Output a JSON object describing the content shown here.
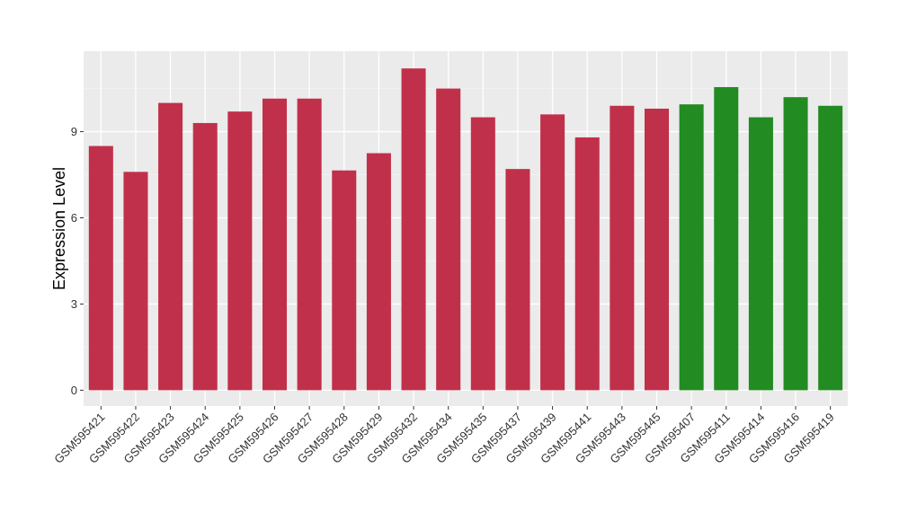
{
  "chart_data": {
    "type": "bar",
    "title": "",
    "xlabel": "",
    "ylabel": "Expression Level",
    "ylim": [
      -0.55,
      11.8
    ],
    "yticks": [
      0,
      3,
      6,
      9
    ],
    "grid": true,
    "panel_background": "#ebebeb",
    "categories": [
      "GSM595421",
      "GSM595422",
      "GSM595423",
      "GSM595424",
      "GSM595425",
      "GSM595426",
      "GSM595427",
      "GSM595428",
      "GSM595429",
      "GSM595432",
      "GSM595434",
      "GSM595435",
      "GSM595437",
      "GSM595439",
      "GSM595441",
      "GSM595443",
      "GSM595445",
      "GSM595407",
      "GSM595411",
      "GSM595414",
      "GSM595416",
      "GSM595419"
    ],
    "values": [
      8.5,
      7.6,
      10.0,
      9.3,
      9.7,
      10.15,
      10.15,
      7.65,
      8.25,
      11.2,
      10.5,
      9.5,
      7.7,
      9.6,
      8.8,
      9.9,
      9.8,
      9.95,
      10.55,
      9.5,
      10.2,
      9.9
    ],
    "bar_colors": [
      "#c1304a",
      "#c1304a",
      "#c1304a",
      "#c1304a",
      "#c1304a",
      "#c1304a",
      "#c1304a",
      "#c1304a",
      "#c1304a",
      "#c1304a",
      "#c1304a",
      "#c1304a",
      "#c1304a",
      "#c1304a",
      "#c1304a",
      "#c1304a",
      "#c1304a",
      "#228b22",
      "#228b22",
      "#228b22",
      "#228b22",
      "#228b22"
    ]
  }
}
